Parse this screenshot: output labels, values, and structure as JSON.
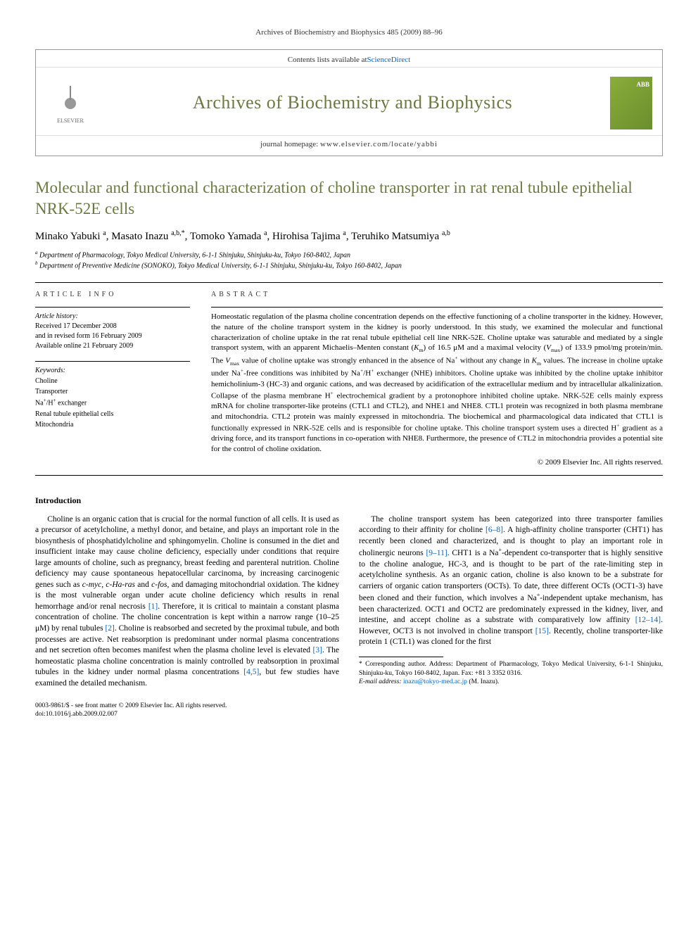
{
  "running_head": "Archives of Biochemistry and Biophysics 485 (2009) 88–96",
  "journal_box": {
    "contents_text": "Contents lists available at ",
    "contents_link": "ScienceDirect",
    "journal_title": "Archives of Biochemistry and Biophysics",
    "homepage_label": "journal homepage: ",
    "homepage_url": "www.elsevier.com/locate/yabbi",
    "publisher": "ELSEVIER"
  },
  "article": {
    "title": "Molecular and functional characterization of choline transporter in rat renal tubule epithelial NRK-52E cells",
    "authors_html": "Minako Yabuki <sup>a</sup>, Masato Inazu <sup>a,b,*</sup>, Tomoko Yamada <sup>a</sup>, Hirohisa Tajima <sup>a</sup>, Teruhiko Matsumiya <sup>a,b</sup>",
    "affiliations": [
      "a Department of Pharmacology, Tokyo Medical University, 6-1-1 Shinjuku, Shinjuku-ku, Tokyo 160-8402, Japan",
      "b Department of Preventive Medicine (SONOKO), Tokyo Medical University, 6-1-1 Shinjuku, Shinjuku-ku, Tokyo 160-8402, Japan"
    ]
  },
  "article_info": {
    "heading": "ARTICLE INFO",
    "history_label": "Article history:",
    "received": "Received 17 December 2008",
    "revised": "and in revised form 16 February 2009",
    "online": "Available online 21 February 2009",
    "keywords_label": "Keywords:",
    "keywords": [
      "Choline",
      "Transporter",
      "Na+/H+ exchanger",
      "Renal tubule epithelial cells",
      "Mitochondria"
    ]
  },
  "abstract": {
    "heading": "ABSTRACT",
    "text": "Homeostatic regulation of the plasma choline concentration depends on the effective functioning of a choline transporter in the kidney. However, the nature of the choline transport system in the kidney is poorly understood. In this study, we examined the molecular and functional characterization of choline uptake in the rat renal tubule epithelial cell line NRK-52E. Choline uptake was saturable and mediated by a single transport system, with an apparent Michaelis–Menten constant (Km) of 16.5 μM and a maximal velocity (Vmax) of 133.9 pmol/mg protein/min. The Vmax value of choline uptake was strongly enhanced in the absence of Na+ without any change in Km values. The increase in choline uptake under Na+-free conditions was inhibited by Na+/H+ exchanger (NHE) inhibitors. Choline uptake was inhibited by the choline uptake inhibitor hemicholinium-3 (HC-3) and organic cations, and was decreased by acidification of the extracellular medium and by intracellular alkalinization. Collapse of the plasma membrane H+ electrochemical gradient by a protonophore inhibited choline uptake. NRK-52E cells mainly express mRNA for choline transporter-like proteins (CTL1 and CTL2), and NHE1 and NHE8. CTL1 protein was recognized in both plasma membrane and mitochondria. CTL2 protein was mainly expressed in mitochondria. The biochemical and pharmacological data indicated that CTL1 is functionally expressed in NRK-52E cells and is responsible for choline uptake. This choline transport system uses a directed H+ gradient as a driving force, and its transport functions in co-operation with NHE8. Furthermore, the presence of CTL2 in mitochondria provides a potential site for the control of choline oxidation.",
    "copyright": "© 2009 Elsevier Inc. All rights reserved."
  },
  "introduction": {
    "heading": "Introduction",
    "para1": "Choline is an organic cation that is crucial for the normal function of all cells. It is used as a precursor of acetylcholine, a methyl donor, and betaine, and plays an important role in the biosynthesis of phosphatidylcholine and sphingomyelin. Choline is consumed in the diet and insufficient intake may cause choline deficiency, especially under conditions that require large amounts of choline, such as pregnancy, breast feeding and parenteral nutrition. Choline deficiency may cause spontaneous hepatocellular carcinoma, by increasing carcinogenic genes such as c-myc, c-Ha-ras and c-fos, and damaging mitochondrial oxidation. The kidney is the most vulnerable organ under acute choline deficiency which results in renal hemorrhage and/or renal necrosis [1]. Therefore, it is critical to maintain a constant plasma concentration of choline. The choline concentration is kept within a narrow range (10–25 μM) by renal tubules [2]. Choline is reabsorbed and secreted by the proximal tubule, and both processes are active. Net reabsorption is predominant under normal plasma concentrations and net secretion often becomes manifest when the plasma choline level is elevated [3]. The homeostatic plasma choline concentration is mainly controlled by reabsorption in proximal tubules in the kidney under normal plasma concentrations [4,5], but few studies have examined the detailed mechanism.",
    "para2": "The choline transport system has been categorized into three transporter families according to their affinity for choline [6–8]. A high-affinity choline transporter (CHT1) has recently been cloned and characterized, and is thought to play an important role in cholinergic neurons [9–11]. CHT1 is a Na+-dependent co-transporter that is highly sensitive to the choline analogue, HC-3, and is thought to be part of the rate-limiting step in acetylcholine synthesis. As an organic cation, choline is also known to be a substrate for carriers of organic cation transporters (OCTs). To date, three different OCTs (OCT1-3) have been cloned and their function, which involves a Na+-independent uptake mechanism, has been characterized. OCT1 and OCT2 are predominately expressed in the kidney, liver, and intestine, and accept choline as a substrate with comparatively low affinity [12–14]. However, OCT3 is not involved in choline transport [15]. Recently, choline transporter-like protein 1 (CTL1) was cloned for the first"
  },
  "footnotes": {
    "corresponding": "* Corresponding author. Address: Department of Pharmacology, Tokyo Medical University, 6-1-1 Shinjuku, Shinjuku-ku, Tokyo 160-8402, Japan. Fax: +81 3 3352 0316.",
    "email_label": "E-mail address: ",
    "email": "inazu@tokyo-med.ac.jp",
    "email_tail": " (M. Inazu)."
  },
  "footer": {
    "issn_line": "0003-9861/$ - see front matter © 2009 Elsevier Inc. All rights reserved.",
    "doi": "doi:10.1016/j.abb.2009.02.007"
  },
  "colors": {
    "accent": "#6b7a3d",
    "link": "#0066cc",
    "border": "#999999",
    "text": "#000000"
  }
}
